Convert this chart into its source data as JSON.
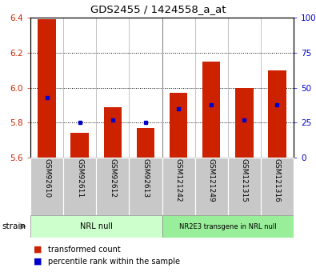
{
  "title": "GDS2455 / 1424558_a_at",
  "samples": [
    "GSM92610",
    "GSM92611",
    "GSM92612",
    "GSM92613",
    "GSM121242",
    "GSM121249",
    "GSM121315",
    "GSM121316"
  ],
  "transformed_count": [
    6.39,
    5.74,
    5.89,
    5.77,
    5.97,
    6.15,
    6.0,
    6.1
  ],
  "percentile_rank": [
    43,
    25,
    27,
    25,
    35,
    38,
    27,
    38
  ],
  "ylim": [
    5.6,
    6.4
  ],
  "yticks_left": [
    5.6,
    5.8,
    6.0,
    6.2,
    6.4
  ],
  "yticks_right": [
    0,
    25,
    50,
    75,
    100
  ],
  "bar_color": "#cc2200",
  "marker_color": "#0000cc",
  "background_color": "#ffffff",
  "strain_groups": [
    {
      "label": "NRL null",
      "start": 0,
      "end": 4,
      "color": "#ccffcc"
    },
    {
      "label": "NR2E3 transgene in NRL null",
      "start": 4,
      "end": 8,
      "color": "#99ee99"
    }
  ],
  "strain_label": "strain",
  "legend_bar": "transformed count",
  "legend_marker": "percentile rank within the sample",
  "tick_label_color_left": "#cc2200",
  "tick_label_color_right": "#0000cc",
  "bar_width": 0.55,
  "base_value": 5.6,
  "group_divider": 3.5
}
